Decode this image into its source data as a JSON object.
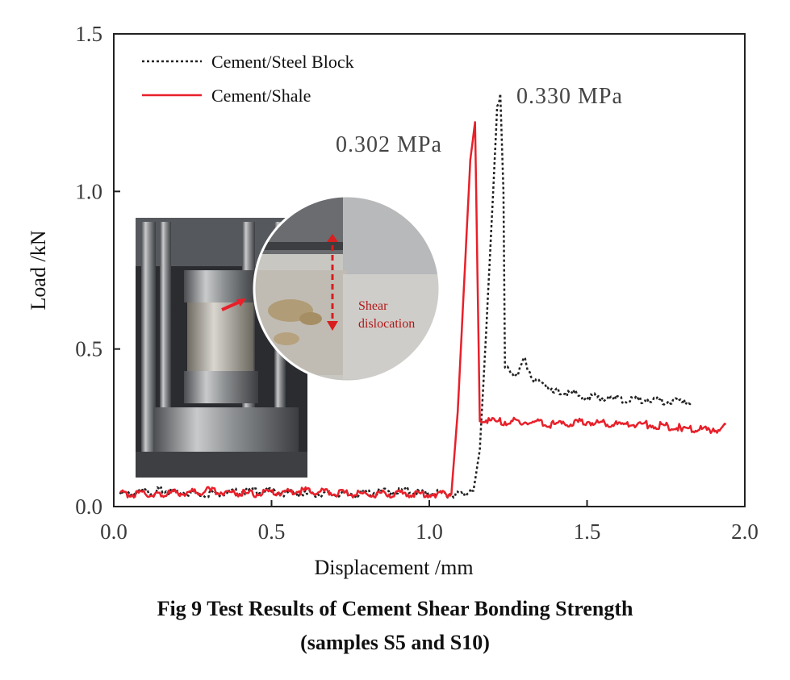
{
  "chart_data": {
    "type": "line",
    "xlabel": "Displacement /mm",
    "ylabel": "Load /kN",
    "xlim": [
      0.0,
      2.0
    ],
    "ylim": [
      0.0,
      1.5
    ],
    "xticks": [
      "0.0",
      "0.5",
      "1.0",
      "1.5",
      "2.0"
    ],
    "yticks": [
      "0.0",
      "0.5",
      "1.0",
      "1.5"
    ],
    "legend_position": "top-left",
    "grid": false,
    "series": [
      {
        "name": "Cement/Steel Block",
        "color": "#222222",
        "style": "dotted",
        "x": [
          0.02,
          0.15,
          0.3,
          0.45,
          0.6,
          0.75,
          0.9,
          1.05,
          1.12,
          1.14,
          1.16,
          1.18,
          1.2,
          1.215,
          1.225,
          1.235,
          1.24,
          1.26,
          1.28,
          1.3,
          1.33,
          1.4,
          1.5,
          1.6,
          1.7,
          1.8,
          1.83
        ],
        "y": [
          0.04,
          0.05,
          0.04,
          0.05,
          0.04,
          0.04,
          0.05,
          0.04,
          0.04,
          0.05,
          0.18,
          0.55,
          0.95,
          1.26,
          1.31,
          1.0,
          0.45,
          0.41,
          0.42,
          0.47,
          0.4,
          0.37,
          0.35,
          0.34,
          0.34,
          0.33,
          0.33
        ]
      },
      {
        "name": "Cement/Shale",
        "color": "#e8202a",
        "style": "solid",
        "x": [
          0.02,
          0.15,
          0.3,
          0.45,
          0.6,
          0.75,
          0.9,
          1.0,
          1.07,
          1.09,
          1.11,
          1.13,
          1.145,
          1.16,
          1.2,
          1.3,
          1.4,
          1.5,
          1.6,
          1.7,
          1.8,
          1.9,
          1.94
        ],
        "y": [
          0.04,
          0.04,
          0.05,
          0.04,
          0.05,
          0.04,
          0.04,
          0.04,
          0.04,
          0.3,
          0.7,
          1.1,
          1.22,
          0.28,
          0.27,
          0.27,
          0.26,
          0.27,
          0.26,
          0.26,
          0.25,
          0.24,
          0.26
        ]
      }
    ],
    "annotations": [
      {
        "text": "0.330 MPa",
        "x": 1.28,
        "y": 1.3
      },
      {
        "text": "0.302 MPa",
        "x": 0.72,
        "y": 1.15
      }
    ],
    "inset": {
      "label": "Shear dislocation"
    }
  },
  "caption": {
    "line1": "Fig 9 Test Results of Cement Shear Bonding Strength",
    "line2": "(samples S5 and S10)"
  }
}
